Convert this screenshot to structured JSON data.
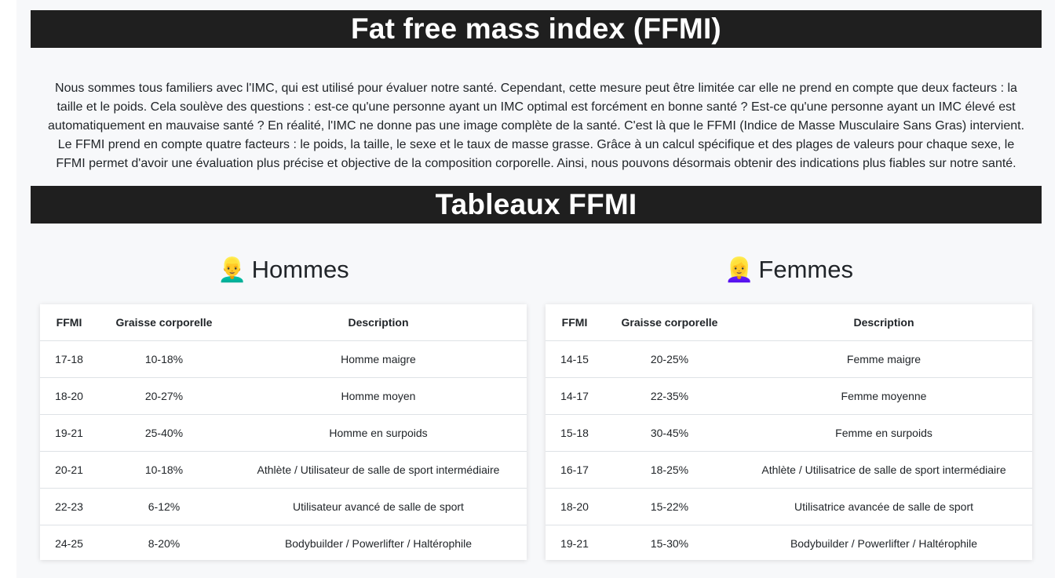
{
  "header": {
    "title": "Fat free mass index (FFMI)"
  },
  "intro": {
    "text": "Nous sommes tous familiers avec l'IMC, qui est utilisé pour évaluer notre santé. Cependant, cette mesure peut être limitée car elle ne prend en compte que deux facteurs : la taille et le poids. Cela soulève des questions : est-ce qu'une personne ayant un IMC optimal est forcément en bonne santé ? Est-ce qu'une personne ayant un IMC élevé est automatiquement en mauvaise santé ? En réalité, l'IMC ne donne pas une image complète de la santé. C'est là que le FFMI (Indice de Masse Musculaire Sans Gras) intervient. Le FFMI prend en compte quatre facteurs : le poids, la taille, le sexe et le taux de masse grasse. Grâce à un calcul spécifique et des plages de valeurs pour chaque sexe, le FFMI permet d'avoir une évaluation plus précise et objective de la composition corporelle. Ainsi, nous pouvons désormais obtenir des indications plus fiables sur notre santé."
  },
  "tables_section": {
    "title": "Tableaux FFMI"
  },
  "men": {
    "emoji": "👱‍♂️",
    "title": "Hommes",
    "headers": [
      "FFMI",
      "Graisse corporelle",
      "Description"
    ],
    "rows": [
      [
        "17-18",
        "10-18%",
        "Homme maigre"
      ],
      [
        "18-20",
        "20-27%",
        "Homme moyen"
      ],
      [
        "19-21",
        "25-40%",
        "Homme en surpoids"
      ],
      [
        "20-21",
        "10-18%",
        "Athlète / Utilisateur de salle de sport intermédiaire"
      ],
      [
        "22-23",
        "6-12%",
        "Utilisateur avancé de salle de sport"
      ],
      [
        "24-25",
        "8-20%",
        "Bodybuilder / Powerlifter / Haltérophile"
      ]
    ]
  },
  "women": {
    "emoji": "👱‍♀️",
    "title": "Femmes",
    "headers": [
      "FFMI",
      "Graisse corporelle",
      "Description"
    ],
    "rows": [
      [
        "14-15",
        "20-25%",
        "Femme maigre"
      ],
      [
        "14-17",
        "22-35%",
        "Femme moyenne"
      ],
      [
        "15-18",
        "30-45%",
        "Femme en surpoids"
      ],
      [
        "16-17",
        "18-25%",
        "Athlète / Utilisatrice de salle de sport intermédiaire"
      ],
      [
        "18-20",
        "15-22%",
        "Utilisatrice avancée de salle de sport"
      ],
      [
        "19-21",
        "15-30%",
        "Bodybuilder / Powerlifter / Haltérophile"
      ]
    ]
  }
}
